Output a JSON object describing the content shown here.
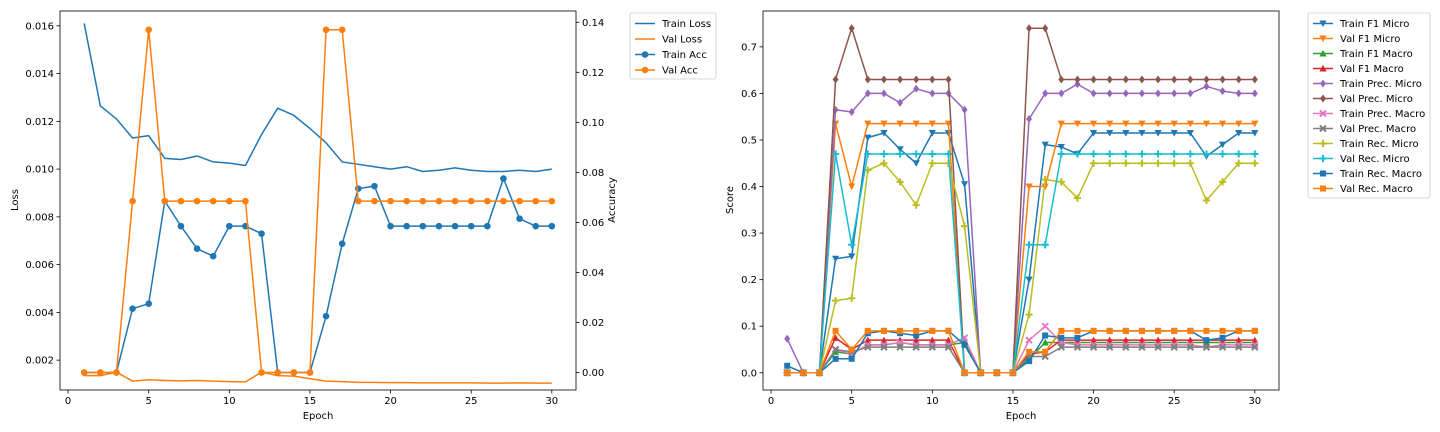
{
  "chart_data": [
    {
      "type": "line",
      "xlabel": "Epoch",
      "ylabel": "Loss",
      "y2label": "Accuracy",
      "xlim": [
        -0.5,
        31.5
      ],
      "ylim": [
        0.00075,
        0.01662
      ],
      "y2lim": [
        -0.007,
        0.1445
      ],
      "xticks": [
        0,
        5,
        10,
        15,
        20,
        25,
        30
      ],
      "yticks": [
        0.002,
        0.004,
        0.006,
        0.008,
        0.01,
        0.012,
        0.014,
        0.016
      ],
      "ytick_labels": [
        "0.002",
        "0.004",
        "0.006",
        "0.008",
        "0.010",
        "0.012",
        "0.014",
        "0.016"
      ],
      "y2ticks": [
        0.0,
        0.02,
        0.04,
        0.06,
        0.08,
        0.1,
        0.12,
        0.14
      ],
      "y2tick_labels": [
        "0.00",
        "0.02",
        "0.04",
        "0.06",
        "0.08",
        "0.10",
        "0.12",
        "0.14"
      ],
      "legend_position": "outside-right",
      "x": [
        1,
        2,
        3,
        4,
        5,
        6,
        7,
        8,
        9,
        10,
        11,
        12,
        13,
        14,
        15,
        16,
        17,
        18,
        19,
        20,
        21,
        22,
        23,
        24,
        25,
        26,
        27,
        28,
        29,
        30
      ],
      "series": [
        {
          "name": "Train Loss",
          "axis": "left",
          "color": "#1f77b4",
          "marker": "none",
          "values": [
            0.0161,
            0.01265,
            0.0121,
            0.0113,
            0.0114,
            0.01045,
            0.0104,
            0.01055,
            0.0103,
            0.01025,
            0.01015,
            0.01145,
            0.01255,
            0.01225,
            0.0117,
            0.0111,
            0.0103,
            0.0102,
            0.0101,
            0.01,
            0.0101,
            0.0099,
            0.00995,
            0.01005,
            0.00995,
            0.0099,
            0.0099,
            0.00995,
            0.0099,
            0.01
          ]
        },
        {
          "name": "Val Loss",
          "axis": "left",
          "color": "#ff7f0e",
          "marker": "none",
          "values": [
            0.00135,
            0.00135,
            0.0015,
            0.00112,
            0.00118,
            0.00115,
            0.00113,
            0.00115,
            0.00112,
            0.0011,
            0.00109,
            0.0015,
            0.00135,
            0.00133,
            0.00122,
            0.00112,
            0.0011,
            0.00107,
            0.00107,
            0.00106,
            0.00106,
            0.00105,
            0.00105,
            0.00105,
            0.00105,
            0.00104,
            0.00104,
            0.00105,
            0.00104,
            0.00104
          ]
        },
        {
          "name": "Train Acc",
          "axis": "right",
          "color": "#1f77b4",
          "marker": "circle",
          "values": [
            0.0,
            0.0,
            0.0,
            0.0255,
            0.0275,
            0.0685,
            0.0585,
            0.0495,
            0.0465,
            0.0585,
            0.0585,
            0.0555,
            0.0,
            0.0,
            0.0,
            0.0225,
            0.0515,
            0.0735,
            0.0745,
            0.0585,
            0.0585,
            0.0585,
            0.0585,
            0.0585,
            0.0585,
            0.0585,
            0.0775,
            0.0615,
            0.0585,
            0.0585
          ]
        },
        {
          "name": "Val Acc",
          "axis": "right",
          "color": "#ff7f0e",
          "marker": "circle",
          "values": [
            0.0,
            0.0,
            0.0,
            0.0685,
            0.137,
            0.0685,
            0.0685,
            0.0685,
            0.0685,
            0.0685,
            0.0685,
            0.0,
            0.0,
            0.0,
            0.0,
            0.137,
            0.137,
            0.0685,
            0.0685,
            0.0685,
            0.0685,
            0.0685,
            0.0685,
            0.0685,
            0.0685,
            0.0685,
            0.0685,
            0.0685,
            0.0685,
            0.0685
          ]
        }
      ]
    },
    {
      "type": "line",
      "xlabel": "Epoch",
      "ylabel": "Score",
      "xlim": [
        -0.5,
        31.5
      ],
      "ylim": [
        -0.037,
        0.777
      ],
      "xticks": [
        0,
        5,
        10,
        15,
        20,
        25,
        30
      ],
      "yticks": [
        0.0,
        0.1,
        0.2,
        0.3,
        0.4,
        0.5,
        0.6,
        0.7
      ],
      "ytick_labels": [
        "0.0",
        "0.1",
        "0.2",
        "0.3",
        "0.4",
        "0.5",
        "0.6",
        "0.7"
      ],
      "legend_position": "outside-right",
      "x": [
        1,
        2,
        3,
        4,
        5,
        6,
        7,
        8,
        9,
        10,
        11,
        12,
        13,
        14,
        15,
        16,
        17,
        18,
        19,
        20,
        21,
        22,
        23,
        24,
        25,
        26,
        27,
        28,
        29,
        30
      ],
      "series": [
        {
          "name": "Train F1 Micro",
          "color": "#1f77b4",
          "marker": "triangle-down",
          "values": [
            0.0,
            0.0,
            0.0,
            0.245,
            0.25,
            0.505,
            0.515,
            0.48,
            0.45,
            0.515,
            0.515,
            0.405,
            0.0,
            0.0,
            0.0,
            0.2,
            0.49,
            0.485,
            0.47,
            0.515,
            0.515,
            0.515,
            0.515,
            0.515,
            0.515,
            0.515,
            0.465,
            0.49,
            0.515,
            0.515
          ]
        },
        {
          "name": "Val F1 Micro",
          "color": "#ff7f0e",
          "marker": "triangle-down",
          "values": [
            0.0,
            0.0,
            0.0,
            0.535,
            0.4,
            0.535,
            0.535,
            0.535,
            0.535,
            0.535,
            0.535,
            0.0,
            0.0,
            0.0,
            0.0,
            0.4,
            0.4,
            0.535,
            0.535,
            0.535,
            0.535,
            0.535,
            0.535,
            0.535,
            0.535,
            0.535,
            0.535,
            0.535,
            0.535,
            0.535
          ]
        },
        {
          "name": "Train F1 Macro",
          "color": "#2ca02c",
          "marker": "triangle-up",
          "values": [
            0.0,
            0.0,
            0.0,
            0.045,
            0.04,
            0.06,
            0.06,
            0.065,
            0.06,
            0.06,
            0.06,
            0.065,
            0.0,
            0.0,
            0.0,
            0.03,
            0.065,
            0.065,
            0.065,
            0.065,
            0.065,
            0.065,
            0.065,
            0.065,
            0.065,
            0.065,
            0.065,
            0.065,
            0.065,
            0.065
          ]
        },
        {
          "name": "Val F1 Macro",
          "color": "#d62728",
          "marker": "triangle-up",
          "values": [
            0.0,
            0.0,
            0.0,
            0.075,
            0.05,
            0.07,
            0.07,
            0.07,
            0.07,
            0.07,
            0.07,
            0.0,
            0.0,
            0.0,
            0.0,
            0.04,
            0.045,
            0.07,
            0.07,
            0.07,
            0.07,
            0.07,
            0.07,
            0.07,
            0.07,
            0.07,
            0.07,
            0.07,
            0.07,
            0.07
          ]
        },
        {
          "name": "Train Prec. Micro",
          "color": "#9467bd",
          "marker": "diamond",
          "values": [
            0.073,
            0.0,
            0.0,
            0.565,
            0.56,
            0.6,
            0.6,
            0.58,
            0.61,
            0.6,
            0.6,
            0.565,
            0.0,
            0.0,
            0.0,
            0.545,
            0.6,
            0.6,
            0.62,
            0.6,
            0.6,
            0.6,
            0.6,
            0.6,
            0.6,
            0.6,
            0.615,
            0.605,
            0.6,
            0.6
          ]
        },
        {
          "name": "Val Prec. Micro",
          "color": "#8c564b",
          "marker": "diamond",
          "values": [
            0.0,
            0.0,
            0.0,
            0.63,
            0.74,
            0.63,
            0.63,
            0.63,
            0.63,
            0.63,
            0.63,
            0.0,
            0.0,
            0.0,
            0.0,
            0.74,
            0.74,
            0.63,
            0.63,
            0.63,
            0.63,
            0.63,
            0.63,
            0.63,
            0.63,
            0.63,
            0.63,
            0.63,
            0.63,
            0.63
          ]
        },
        {
          "name": "Train Prec. Macro",
          "color": "#e377c2",
          "marker": "x",
          "values": [
            0.0,
            0.0,
            0.0,
            0.05,
            0.04,
            0.06,
            0.06,
            0.065,
            0.06,
            0.06,
            0.06,
            0.075,
            0.0,
            0.0,
            0.0,
            0.07,
            0.1,
            0.065,
            0.06,
            0.06,
            0.06,
            0.06,
            0.06,
            0.06,
            0.06,
            0.06,
            0.055,
            0.06,
            0.06,
            0.06
          ]
        },
        {
          "name": "Val Prec. Macro",
          "color": "#7f7f7f",
          "marker": "x",
          "values": [
            0.0,
            0.0,
            0.0,
            0.05,
            0.045,
            0.055,
            0.055,
            0.055,
            0.055,
            0.055,
            0.055,
            0.0,
            0.0,
            0.0,
            0.0,
            0.035,
            0.035,
            0.055,
            0.055,
            0.055,
            0.055,
            0.055,
            0.055,
            0.055,
            0.055,
            0.055,
            0.055,
            0.055,
            0.055,
            0.055
          ]
        },
        {
          "name": "Train Rec. Micro",
          "color": "#bcbd22",
          "marker": "plus",
          "values": [
            0.0,
            0.0,
            0.0,
            0.155,
            0.16,
            0.435,
            0.45,
            0.41,
            0.36,
            0.45,
            0.45,
            0.315,
            0.0,
            0.0,
            0.0,
            0.125,
            0.415,
            0.41,
            0.375,
            0.45,
            0.45,
            0.45,
            0.45,
            0.45,
            0.45,
            0.45,
            0.37,
            0.41,
            0.45,
            0.45
          ]
        },
        {
          "name": "Val Rec. Micro",
          "color": "#17becf",
          "marker": "plus",
          "values": [
            0.0,
            0.0,
            0.0,
            0.47,
            0.275,
            0.47,
            0.47,
            0.47,
            0.47,
            0.47,
            0.47,
            0.0,
            0.0,
            0.0,
            0.0,
            0.275,
            0.275,
            0.47,
            0.47,
            0.47,
            0.47,
            0.47,
            0.47,
            0.47,
            0.47,
            0.47,
            0.47,
            0.47,
            0.47,
            0.47
          ]
        },
        {
          "name": "Train Rec. Macro",
          "color": "#1f77b4",
          "marker": "square",
          "values": [
            0.015,
            0.0,
            0.0,
            0.03,
            0.03,
            0.085,
            0.09,
            0.085,
            0.08,
            0.09,
            0.09,
            0.06,
            0.0,
            0.0,
            0.0,
            0.025,
            0.08,
            0.075,
            0.075,
            0.09,
            0.09,
            0.09,
            0.09,
            0.09,
            0.09,
            0.09,
            0.07,
            0.075,
            0.09,
            0.09
          ]
        },
        {
          "name": "Val Rec. Macro",
          "color": "#ff7f0e",
          "marker": "square",
          "values": [
            0.0,
            0.0,
            0.0,
            0.09,
            0.05,
            0.09,
            0.09,
            0.09,
            0.09,
            0.09,
            0.09,
            0.0,
            0.0,
            0.0,
            0.0,
            0.045,
            0.045,
            0.09,
            0.09,
            0.09,
            0.09,
            0.09,
            0.09,
            0.09,
            0.09,
            0.09,
            0.09,
            0.09,
            0.09,
            0.09
          ]
        }
      ]
    }
  ]
}
